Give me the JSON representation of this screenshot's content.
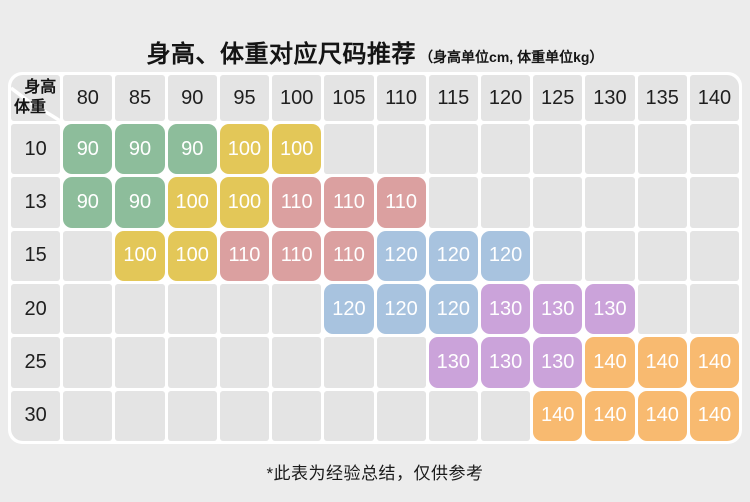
{
  "title": "身高、体重对应尺码推荐",
  "subtitle": "（身高单位cm, 体重单位kg）",
  "footer_note": "*此表为经验总结，仅供参考",
  "chart_data": {
    "type": "table",
    "title": "身高、体重对应尺码推荐",
    "units_note": "身高单位cm, 体重单位kg",
    "corner": {
      "top_label": "身高",
      "bottom_label": "体重"
    },
    "columns": [
      "80",
      "85",
      "90",
      "95",
      "100",
      "105",
      "110",
      "115",
      "120",
      "125",
      "130",
      "135",
      "140"
    ],
    "rows": [
      "10",
      "13",
      "15",
      "20",
      "25",
      "30"
    ],
    "matrix": [
      [
        90,
        90,
        90,
        100,
        100,
        null,
        null,
        null,
        null,
        null,
        null,
        null,
        null
      ],
      [
        90,
        90,
        100,
        100,
        110,
        110,
        110,
        null,
        null,
        null,
        null,
        null,
        null
      ],
      [
        null,
        100,
        100,
        110,
        110,
        110,
        120,
        120,
        120,
        null,
        null,
        null,
        null
      ],
      [
        null,
        null,
        null,
        null,
        null,
        120,
        120,
        120,
        130,
        130,
        130,
        null,
        null
      ],
      [
        null,
        null,
        null,
        null,
        null,
        null,
        null,
        130,
        130,
        130,
        140,
        140,
        140
      ],
      [
        null,
        null,
        null,
        null,
        null,
        null,
        null,
        null,
        null,
        140,
        140,
        140,
        140
      ]
    ],
    "size_colors": {
      "90": "#8dbd9b",
      "100": "#e3c758",
      "110": "#dba0a0",
      "120": "#a8c3df",
      "130": "#cba3da",
      "140": "#f8ba70"
    },
    "empty_cell_color": "#e4e4e4",
    "note": "*此表为经验总结，仅供参考"
  }
}
